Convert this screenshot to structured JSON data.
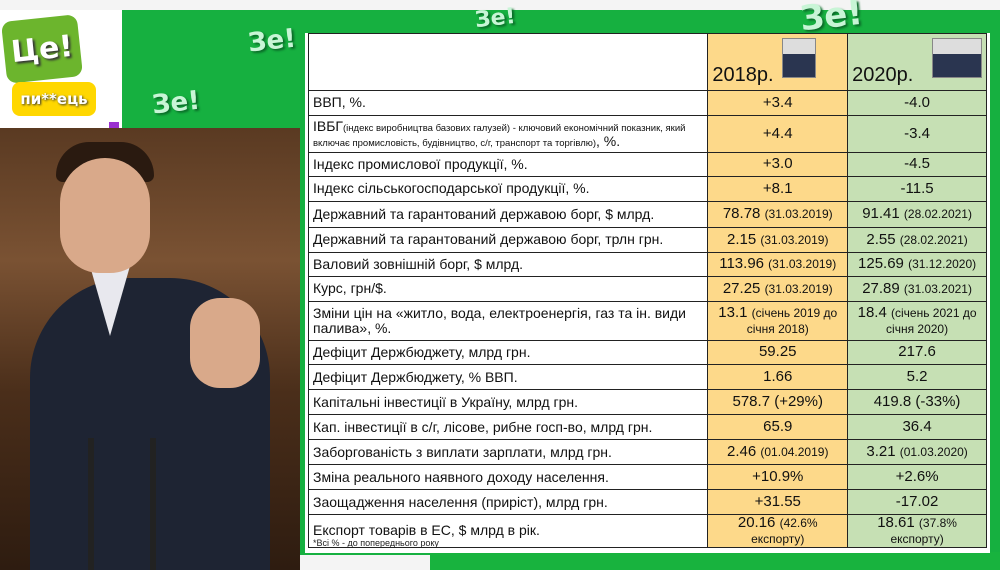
{
  "logo": {
    "top": "Це!",
    "bottom": "пи**ець"
  },
  "watermarks": [
    "Зе!",
    "Зе!",
    "Зе!",
    "Зе!"
  ],
  "table": {
    "headers": {
      "y2018": "2018р.",
      "y2020": "2020р."
    },
    "rows": [
      {
        "label": "ВВП, %.",
        "v2018": "+3.4",
        "v2020": "-4.0"
      },
      {
        "label": "ІВБГ",
        "label_note": "(індекс виробництва базових галузей) - ключовий економічний показник, який включає промисловість, будівництво, с/г, транспорт та торгівлю)",
        "label_suffix": ", %.",
        "v2018": "+4.4",
        "v2020": "-3.4"
      },
      {
        "label": "Індекс промислової продукції, %.",
        "v2018": "+3.0",
        "v2020": "-4.5"
      },
      {
        "label": "Індекс сільськогосподарської продукції, %.",
        "v2018": "+8.1",
        "v2020": "-11.5"
      },
      {
        "label": "Державний та гарантований державою борг, $ млрд.",
        "v2018": "78.78",
        "n2018": "(31.03.2019)",
        "v2020": "91.41",
        "n2020": "(28.02.2021)"
      },
      {
        "label": "Державний та гарантований державою борг, трлн грн.",
        "v2018": "2.15",
        "n2018": "(31.03.2019)",
        "v2020": "2.55",
        "n2020": "(28.02.2021)"
      },
      {
        "label": "Валовий зовнішній борг, $ млрд.",
        "v2018": "113.96",
        "n2018": "(31.03.2019)",
        "v2020": "125.69",
        "n2020": "(31.12.2020)"
      },
      {
        "label": "Курс, грн/$.",
        "v2018": "27.25",
        "n2018": "(31.03.2019)",
        "v2020": "27.89",
        "n2020": "(31.03.2021)"
      },
      {
        "label": "Зміни цін на «житло, вода, електроенергія, газ та ін. види палива», %.",
        "v2018": "13.1",
        "n2018": "(січень 2019 до січня 2018)",
        "v2020": "18.4",
        "n2020": "(січень 2021 до січня 2020)"
      },
      {
        "label": "Дефіцит Держбюджету, млрд грн.",
        "v2018": "59.25",
        "v2020": "217.6"
      },
      {
        "label": "Дефіцит Держбюджету, % ВВП.",
        "v2018": "1.66",
        "v2020": "5.2"
      },
      {
        "label": "Капітальні інвестиції в Україну, млрд грн.",
        "v2018": "578.7 (+29%)",
        "v2020": "419.8 (-33%)"
      },
      {
        "label": "Кап. інвестиції в с/г, лісове, рибне госп-во, млрд грн.",
        "v2018": "65.9",
        "v2020": "36.4"
      },
      {
        "label": "Заборгованість з виплати зарплати, млрд грн.",
        "v2018": "2.46",
        "n2018": "(01.04.2019)",
        "v2020": "3.21",
        "n2020": "(01.03.2020)"
      },
      {
        "label": "Зміна реального наявного доходу населення.",
        "v2018": "+10.9%",
        "v2020": "+2.6%"
      },
      {
        "label": "Заощадження населення (приріст), млрд грн.",
        "v2018": "+31.55",
        "v2020": "-17.02"
      },
      {
        "label": "Експорт товарів в ЕС, $ млрд в рік.",
        "v2018": "20.16",
        "n2018": "(42.6% експорту)",
        "v2020": "18.61",
        "n2020": "(37.8% експорту)"
      }
    ],
    "footnote": "*Всі % - до попереднього року"
  },
  "colors": {
    "green": "#16b040",
    "col2018": "#fdd98a",
    "col2020": "#c6e0b4"
  }
}
